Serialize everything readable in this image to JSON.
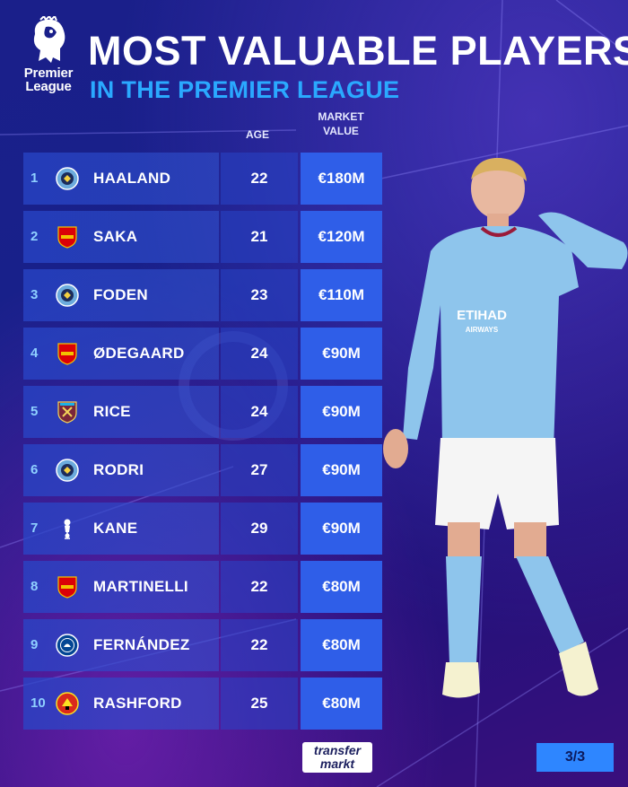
{
  "header": {
    "logo_line1": "Premier",
    "logo_line2": "League",
    "title": "MOST VALUABLE PLAYERS",
    "subtitle": "IN THE PREMIER LEAGUE"
  },
  "columns": {
    "age": "AGE",
    "market_value_line1": "MARKET",
    "market_value_line2": "VALUE"
  },
  "players": [
    {
      "rank": "1",
      "club": "man-city",
      "name": "HAALAND",
      "age": "22",
      "value": "€180M"
    },
    {
      "rank": "2",
      "club": "arsenal",
      "name": "SAKA",
      "age": "21",
      "value": "€120M"
    },
    {
      "rank": "3",
      "club": "man-city",
      "name": "FODEN",
      "age": "23",
      "value": "€110M"
    },
    {
      "rank": "4",
      "club": "arsenal",
      "name": "ØDEGAARD",
      "age": "24",
      "value": "€90M"
    },
    {
      "rank": "5",
      "club": "west-ham",
      "name": "RICE",
      "age": "24",
      "value": "€90M"
    },
    {
      "rank": "6",
      "club": "man-city",
      "name": "RODRI",
      "age": "27",
      "value": "€90M"
    },
    {
      "rank": "7",
      "club": "tottenham",
      "name": "KANE",
      "age": "29",
      "value": "€90M"
    },
    {
      "rank": "8",
      "club": "arsenal",
      "name": "MARTINELLI",
      "age": "22",
      "value": "€80M"
    },
    {
      "rank": "9",
      "club": "chelsea",
      "name": "FERNÁNDEZ",
      "age": "22",
      "value": "€80M"
    },
    {
      "rank": "10",
      "club": "man-united",
      "name": "RASHFORD",
      "age": "25",
      "value": "€80M"
    }
  ],
  "player_shirt": {
    "sponsor_line1": "ETIHAD",
    "sponsor_line2": "AIRWAYS"
  },
  "footer": {
    "brand_line1": "transfer",
    "brand_line2": "markt",
    "page": "3/3"
  },
  "colors": {
    "accent_blue": "#2aa9ff",
    "value_box": "#2f5ee8",
    "page_badge": "#2e86ff",
    "sky_blue_kit": "#8ec5ec"
  }
}
